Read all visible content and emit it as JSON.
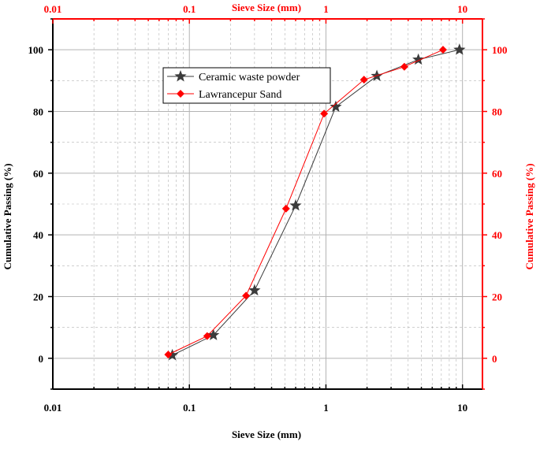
{
  "chart_data": {
    "type": "scatter",
    "x_scale": "log",
    "xlim": [
      0.01,
      14
    ],
    "ylim": [
      -10,
      110
    ],
    "grid": true,
    "legend_position": "top-left",
    "xlabel_bottom": "Sieve Size (mm)",
    "xlabel_top": "Sieve Size (mm)",
    "ylabel_left": "Cumulative Passing (%)",
    "ylabel_right": "Cumulative Passing (%)",
    "x_ticks": [
      "0.01",
      "0.1",
      "1",
      "10"
    ],
    "y_ticks": [
      "0",
      "20",
      "40",
      "60",
      "80",
      "100"
    ],
    "colors": {
      "left_axis": "#000000",
      "right_axis": "#ff0000",
      "grid": "#b3b3b3"
    },
    "series": [
      {
        "name": "Ceramic waste powder",
        "color": "#3b3b3b",
        "marker": "star",
        "x": [
          0.075,
          0.15,
          0.3,
          0.6,
          1.18,
          2.36,
          4.75,
          9.5
        ],
        "y": [
          1,
          7.5,
          22,
          49.5,
          81.5,
          91.5,
          96.8,
          100
        ]
      },
      {
        "name": "Lawrancepur Sand",
        "color": "#ff0000",
        "marker": "diamond",
        "x": [
          0.07,
          0.135,
          0.26,
          0.51,
          0.97,
          1.9,
          3.75,
          7.2
        ],
        "y": [
          1.2,
          7.2,
          20.3,
          48.5,
          79.3,
          90.3,
          94.5,
          100
        ]
      }
    ]
  }
}
